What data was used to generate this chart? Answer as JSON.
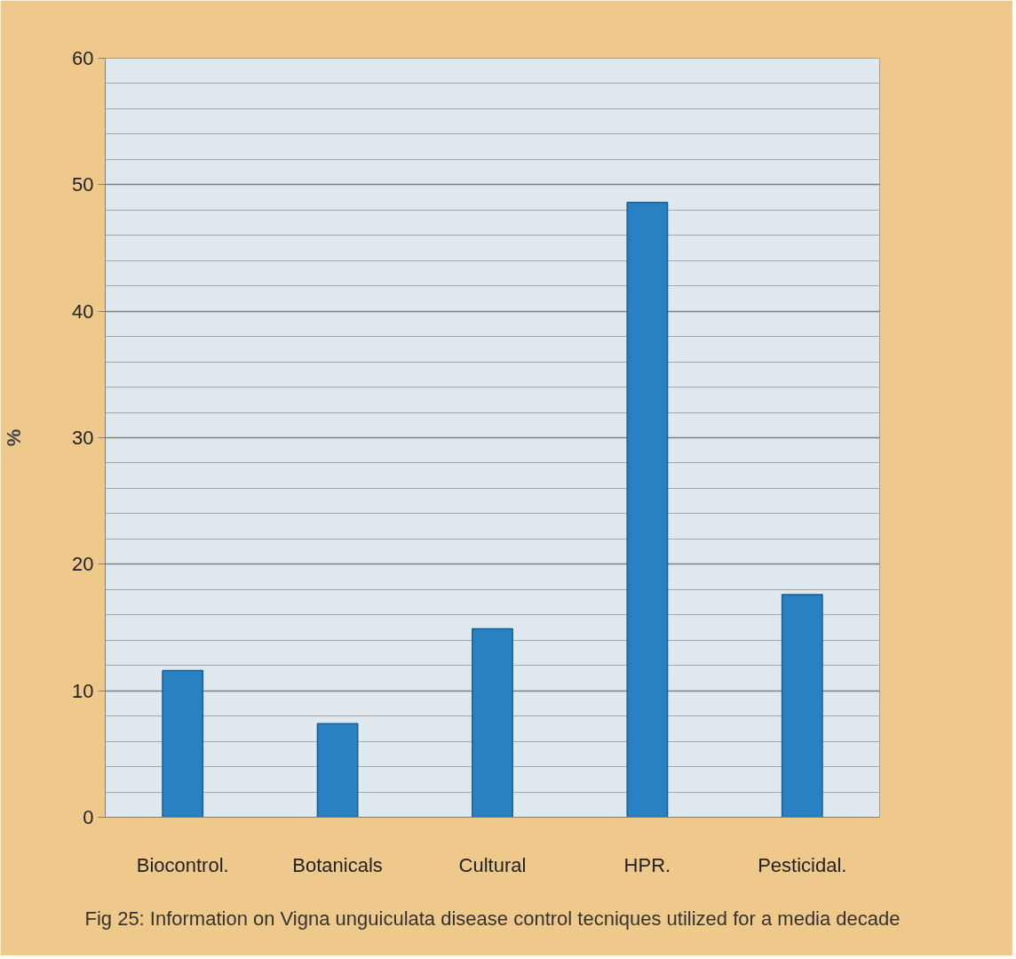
{
  "chart_data": {
    "type": "bar",
    "title": "Fig 25: Information on Vigna unguiculata disease control tecniques utilized for a media decade",
    "ylabel": "%",
    "categories": [
      "Biocontrol.",
      "Botanicals",
      "Cultural",
      "HPR.",
      "Pesticidal."
    ],
    "values": [
      11.6,
      7.4,
      14.9,
      48.6,
      17.6
    ],
    "color": "#2781c2",
    "ylim": [
      0,
      60
    ],
    "yticks": [
      0,
      10,
      20,
      30,
      40,
      50,
      60
    ],
    "grid": "y"
  }
}
